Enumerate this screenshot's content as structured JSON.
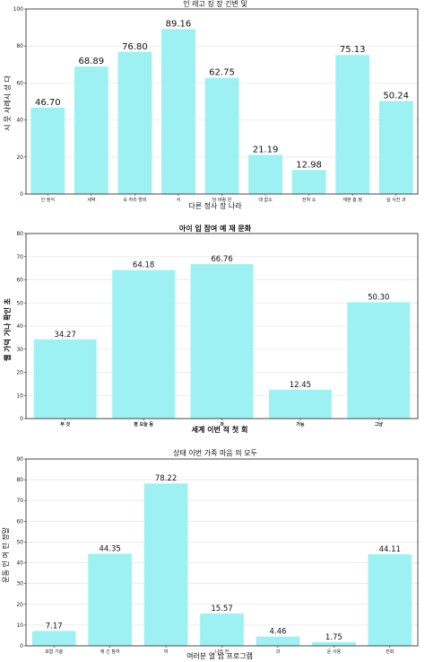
{
  "chart_data": [
    {
      "type": "bar",
      "title": "인 레고 징 장 긴변 및",
      "xlabel": "다른 정사 장 나라",
      "ylabel": "시 뭇 사례시 성 다",
      "categories": [
        "인 정식",
        "세박",
        "속 자리 방비",
        "서",
        "당 바람 왼",
        "데 없소",
        "전혀 소",
        "재판 흥 정",
        "실 사진 과"
      ],
      "values": [
        46.7,
        68.89,
        76.8,
        89.16,
        62.75,
        21.19,
        12.98,
        75.13,
        50.24
      ],
      "value_labels": [
        "46.70",
        "68.89",
        "76.80",
        "89.16",
        "62.75",
        "21.19",
        "12.98",
        "75.13",
        "50.24"
      ],
      "ylim": [
        0,
        100
      ],
      "yticks": [
        0,
        20,
        40,
        60,
        80,
        100
      ],
      "grid": true,
      "color": "#9ef1f3"
    },
    {
      "type": "bar",
      "title": "아이 입 참여 예 재 문화",
      "xlabel": "세계 이번 적 첫 회",
      "ylabel": "웹 가덕 거나 확인 초",
      "categories": [
        "무 것",
        "평 오늘 등",
        "과",
        "가능",
        "그냥"
      ],
      "values": [
        34.27,
        64.18,
        66.76,
        12.45,
        50.3
      ],
      "value_labels": [
        "34.27",
        "64.18",
        "66.76",
        "12.45",
        "50.30"
      ],
      "ylim": [
        0,
        80
      ],
      "yticks": [
        0,
        10,
        20,
        30,
        40,
        50,
        60,
        70,
        80
      ],
      "grid": true,
      "color": "#9ef1f3"
    },
    {
      "type": "bar",
      "title": "상태 이번 가족 마음 의 모두",
      "xlabel": "여러분 열 밤 프로그램",
      "ylabel": "운동 인 여 린 정말",
      "categories": [
        "포함 기술",
        "애 긴 참여",
        "여",
        "나라 전",
        "과",
        "운 사용",
        "전화"
      ],
      "values": [
        7.17,
        44.35,
        78.22,
        15.57,
        4.46,
        1.75,
        44.11
      ],
      "value_labels": [
        "7.17",
        "44.35",
        "78.22",
        "15.57",
        "4.46",
        "1.75",
        "44.11"
      ],
      "ylim": [
        0,
        90
      ],
      "yticks": [
        0,
        10,
        20,
        30,
        40,
        50,
        60,
        70,
        80,
        90
      ],
      "grid": true,
      "color": "#9ef1f3"
    }
  ]
}
